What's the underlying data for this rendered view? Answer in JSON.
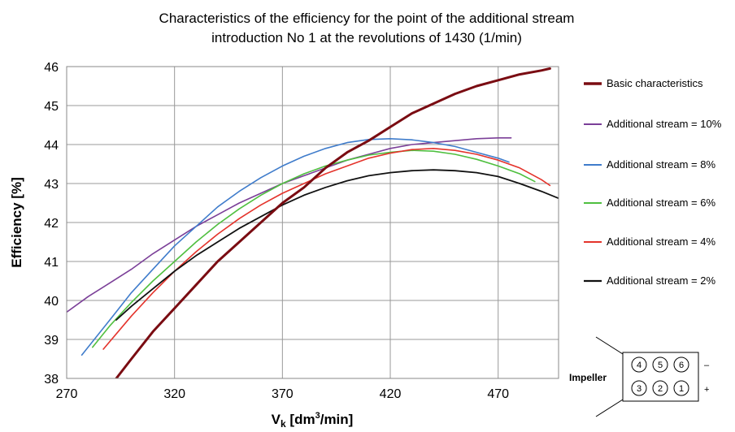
{
  "chart_data": {
    "type": "line",
    "title_line1": "Characteristics of the efficiency for the point of the additional stream",
    "title_line2": "introduction No 1 at the revolutions of 1430 (1/min)",
    "ylabel": "Efficiency [%]",
    "xlabel_main": "V",
    "xlabel_sub": "k",
    "xlabel_unit_pre": " [dm",
    "xlabel_unit_sup": "3",
    "xlabel_unit_post": "/min]",
    "xlim": [
      270,
      498
    ],
    "ylim": [
      38,
      46
    ],
    "x_ticks": [
      270,
      320,
      370,
      420,
      470
    ],
    "y_ticks": [
      38,
      39,
      40,
      41,
      42,
      43,
      44,
      45,
      46
    ],
    "grid": true,
    "legend_position": "right",
    "series": [
      {
        "name": "Basic characteristics",
        "color": "#7a0c12",
        "width": 3,
        "x": [
          293,
          300,
          310,
          320,
          330,
          340,
          350,
          360,
          370,
          380,
          390,
          400,
          410,
          420,
          430,
          440,
          450,
          460,
          470,
          480,
          490,
          494
        ],
        "y": [
          38.0,
          38.5,
          39.2,
          39.8,
          40.4,
          41.0,
          41.5,
          42.0,
          42.5,
          42.9,
          43.4,
          43.8,
          44.1,
          44.45,
          44.8,
          45.05,
          45.3,
          45.5,
          45.65,
          45.8,
          45.9,
          45.95
        ]
      },
      {
        "name": "Additional stream = 10%",
        "color": "#7b3f98",
        "width": 1.6,
        "x": [
          270,
          280,
          290,
          300,
          310,
          320,
          330,
          340,
          350,
          360,
          370,
          380,
          390,
          400,
          410,
          420,
          430,
          440,
          450,
          460,
          470,
          476
        ],
        "y": [
          39.7,
          40.1,
          40.45,
          40.8,
          41.2,
          41.55,
          41.9,
          42.2,
          42.5,
          42.75,
          43.0,
          43.2,
          43.4,
          43.6,
          43.75,
          43.9,
          44.0,
          44.05,
          44.1,
          44.15,
          44.17,
          44.17
        ]
      },
      {
        "name": "Additional stream  = 8%",
        "color": "#3f7ccb",
        "width": 1.6,
        "x": [
          277,
          290,
          300,
          310,
          320,
          330,
          340,
          350,
          360,
          370,
          380,
          390,
          400,
          410,
          420,
          430,
          440,
          450,
          460,
          470,
          475
        ],
        "y": [
          38.6,
          39.5,
          40.2,
          40.8,
          41.4,
          41.9,
          42.4,
          42.8,
          43.15,
          43.45,
          43.7,
          43.9,
          44.05,
          44.13,
          44.15,
          44.12,
          44.05,
          43.95,
          43.8,
          43.65,
          43.55
        ]
      },
      {
        "name": "Additional stream = 6%",
        "color": "#4fbf3f",
        "width": 1.6,
        "x": [
          282,
          290,
          300,
          310,
          320,
          330,
          340,
          350,
          360,
          370,
          380,
          390,
          400,
          410,
          420,
          430,
          440,
          450,
          460,
          470,
          480,
          487
        ],
        "y": [
          38.8,
          39.35,
          39.95,
          40.5,
          41.0,
          41.5,
          41.95,
          42.35,
          42.7,
          43.0,
          43.25,
          43.45,
          43.6,
          43.73,
          43.8,
          43.85,
          43.83,
          43.75,
          43.62,
          43.45,
          43.25,
          43.05
        ]
      },
      {
        "name": "Additional stream  = 4%",
        "color": "#e4332b",
        "width": 1.6,
        "x": [
          287,
          300,
          310,
          320,
          330,
          340,
          350,
          360,
          370,
          380,
          390,
          400,
          410,
          420,
          430,
          440,
          450,
          460,
          470,
          480,
          490,
          494
        ],
        "y": [
          38.75,
          39.6,
          40.2,
          40.75,
          41.25,
          41.7,
          42.1,
          42.45,
          42.75,
          43.0,
          43.25,
          43.45,
          43.65,
          43.78,
          43.87,
          43.9,
          43.85,
          43.75,
          43.6,
          43.4,
          43.1,
          42.95
        ]
      },
      {
        "name": "Additional stream = 2%",
        "color": "#111111",
        "width": 1.8,
        "x": [
          293,
          300,
          310,
          320,
          330,
          340,
          350,
          360,
          370,
          380,
          390,
          400,
          410,
          420,
          430,
          440,
          450,
          460,
          470,
          480,
          490,
          498
        ],
        "y": [
          39.5,
          39.85,
          40.3,
          40.75,
          41.15,
          41.5,
          41.85,
          42.15,
          42.45,
          42.7,
          42.9,
          43.07,
          43.2,
          43.28,
          43.33,
          43.35,
          43.33,
          43.28,
          43.18,
          43.0,
          42.8,
          42.62
        ]
      }
    ]
  },
  "impeller": {
    "label": "Impeller",
    "top_row": [
      "4",
      "5",
      "6"
    ],
    "bottom_row": [
      "3",
      "2",
      "1"
    ],
    "minus": "–",
    "plus": "+"
  }
}
